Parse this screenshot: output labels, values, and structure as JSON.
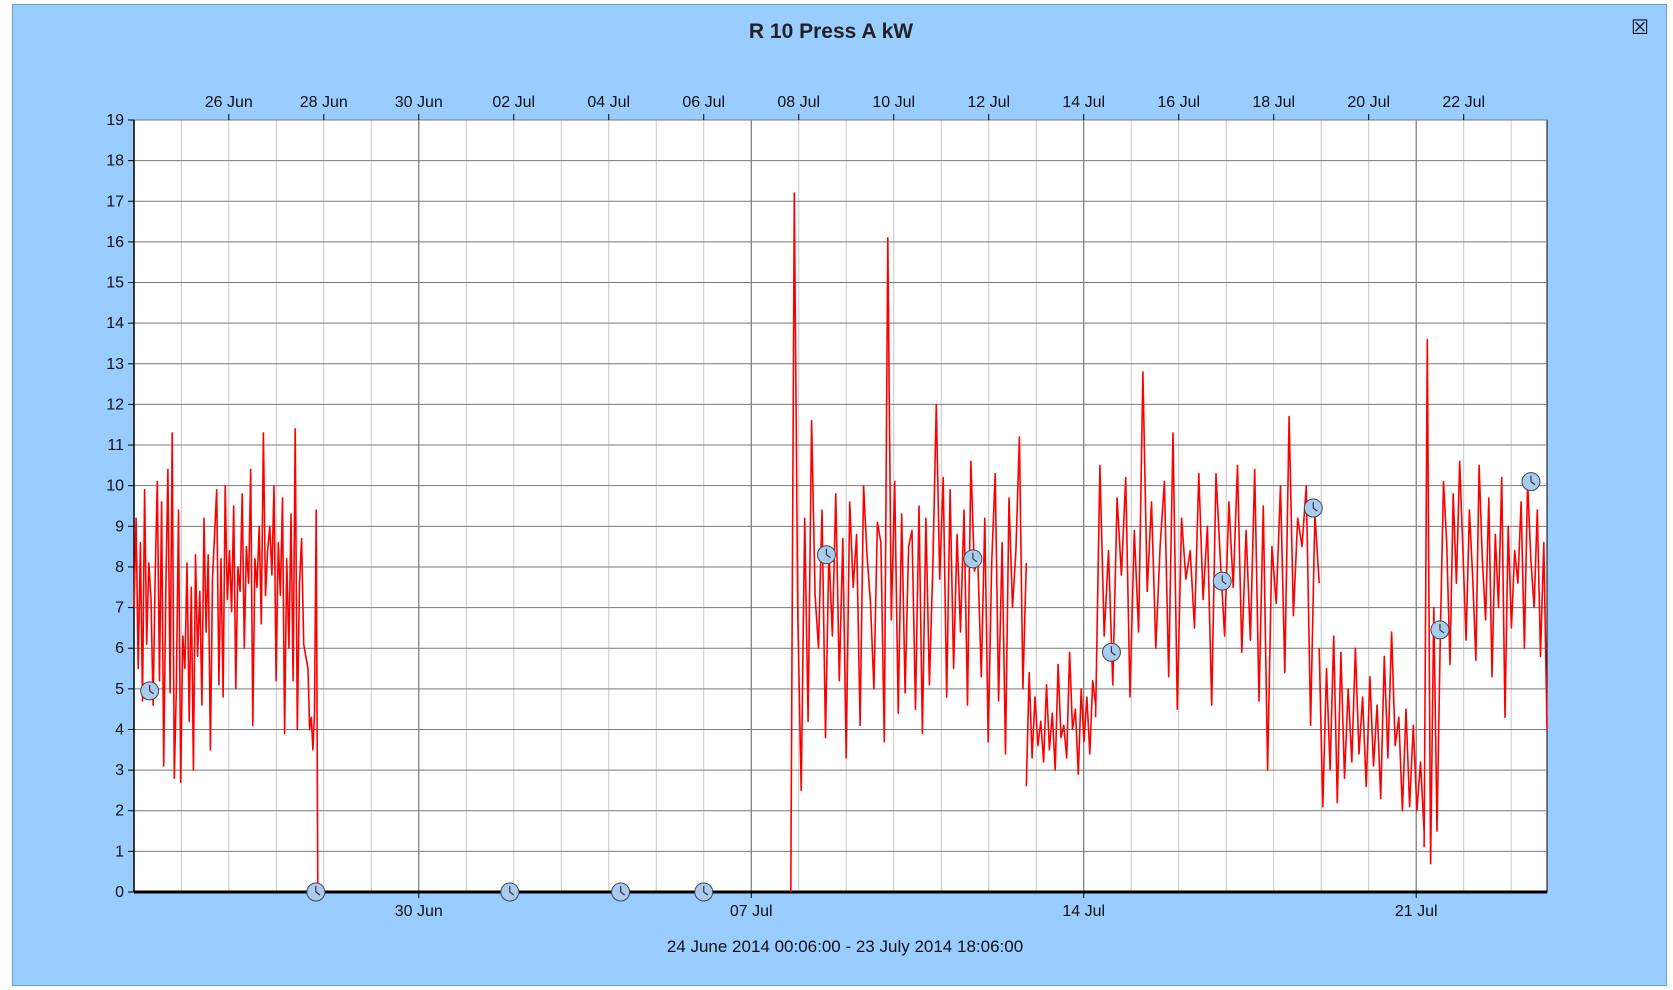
{
  "window": {
    "close_icon": "☒"
  },
  "chart_data": {
    "type": "line",
    "title": "R 10 Press A kW",
    "date_range_label": "24 June 2014 00:06:00  -  23 July 2014 18:06:00",
    "start": "2014-06-24T00:06:00",
    "end": "2014-07-23T18:06:00",
    "ylim": [
      0,
      19
    ],
    "y_ticks": [
      0,
      1,
      2,
      3,
      4,
      5,
      6,
      7,
      8,
      9,
      10,
      11,
      12,
      13,
      14,
      15,
      16,
      17,
      18,
      19
    ],
    "top_axis_ticks": [
      {
        "date": "2014-06-26",
        "label": "26 Jun"
      },
      {
        "date": "2014-06-28",
        "label": "28 Jun"
      },
      {
        "date": "2014-06-30",
        "label": "30 Jun"
      },
      {
        "date": "2014-07-02",
        "label": "02 Jul"
      },
      {
        "date": "2014-07-04",
        "label": "04 Jul"
      },
      {
        "date": "2014-07-06",
        "label": "06 Jul"
      },
      {
        "date": "2014-07-08",
        "label": "08 Jul"
      },
      {
        "date": "2014-07-10",
        "label": "10 Jul"
      },
      {
        "date": "2014-07-12",
        "label": "12 Jul"
      },
      {
        "date": "2014-07-14",
        "label": "14 Jul"
      },
      {
        "date": "2014-07-16",
        "label": "16 Jul"
      },
      {
        "date": "2014-07-18",
        "label": "18 Jul"
      },
      {
        "date": "2014-07-20",
        "label": "20 Jul"
      },
      {
        "date": "2014-07-22",
        "label": "22 Jul"
      }
    ],
    "bottom_axis_ticks": [
      {
        "date": "2014-06-30",
        "label": "30 Jun"
      },
      {
        "date": "2014-07-07",
        "label": "07 Jul"
      },
      {
        "date": "2014-07-14",
        "label": "14 Jul"
      },
      {
        "date": "2014-07-21",
        "label": "21 Jul"
      }
    ],
    "grid": true,
    "series": [
      {
        "color": "#ff0000",
        "segments": [
          {
            "t_start": "2014-06-24T00:06",
            "t_end": "2014-06-27T16:00",
            "values": [
              7,
              9.2,
              5.5,
              8.6,
              4.7,
              9.9,
              6.1,
              8.1,
              7.2,
              4.6,
              7.8,
              10.1,
              5.2,
              9.6,
              3.1,
              7.4,
              10.4,
              4.9,
              11.3,
              2.8,
              5.1,
              9.4,
              2.7,
              6.3,
              5.5,
              8.1,
              4.2,
              7.5,
              3.0,
              8.3,
              5.8,
              7.4,
              4.6,
              9.2,
              6.4,
              8.3,
              3.5,
              7.7,
              8.8,
              9.9,
              5.1,
              8.2,
              4.8,
              10.0,
              7.2,
              8.4,
              6.9,
              9.5,
              5.0,
              8.0,
              7.4,
              9.8,
              6.0,
              8.5,
              7.6,
              10.4,
              4.1,
              8.2,
              7.5,
              9.0,
              6.6,
              11.3,
              7.3,
              8.4,
              9.0,
              7.8,
              10.0,
              5.2,
              8.6,
              7.3,
              9.7,
              3.9,
              8.2,
              6.0,
              9.3,
              5.2,
              11.4,
              4.0,
              7.6,
              8.7,
              6.1,
              5.8,
              5.5
            ]
          },
          {
            "t_start": "2014-06-27T16:00",
            "t_end": "2014-06-27T21:00",
            "values": [
              5.5,
              4.0,
              4.3,
              3.5,
              4.4,
              9.4,
              0.0
            ]
          },
          {
            "t_start": "2014-07-07T20:00",
            "t_end": "2014-07-12T19:00",
            "values": [
              0.0,
              17.2,
              6.8,
              2.5,
              9.2,
              4.2,
              11.6,
              7.3,
              6.0,
              9.4,
              3.8,
              8.4,
              6.3,
              9.8,
              5.2,
              8.7,
              3.3,
              9.6,
              7.5,
              8.8,
              4.1,
              10.0,
              8.3,
              7.1,
              5.0,
              9.1,
              8.6,
              3.7,
              16.1,
              6.7,
              10.1,
              4.4,
              9.3,
              4.9,
              8.5,
              8.9,
              4.5,
              9.5,
              3.9,
              9.2,
              5.1,
              8.0,
              12.0,
              7.7,
              10.2,
              4.8,
              9.9,
              5.5,
              8.8,
              6.4,
              9.4,
              4.6,
              10.6,
              7.9,
              8.2,
              5.3,
              9.2,
              3.7,
              8.1,
              10.3,
              4.7,
              8.6,
              3.4,
              9.7,
              7.0,
              8.4,
              11.2,
              5.0,
              8.1
            ]
          },
          {
            "t_start": "2014-07-12T19:00",
            "t_end": "2014-07-14T06:00",
            "values": [
              2.6,
              5.4,
              3.3,
              4.8,
              3.6,
              4.2,
              3.2,
              5.1,
              3.5,
              4.4,
              3.0,
              5.6,
              3.8,
              4.1,
              3.3,
              5.9,
              4.0,
              4.5,
              2.9,
              5.0,
              3.7,
              4.8,
              3.4,
              5.2,
              4.6
            ]
          },
          {
            "t_start": "2014-07-14T06:00",
            "t_end": "2014-07-18T23:00",
            "values": [
              4.3,
              10.5,
              6.3,
              8.4,
              5.1,
              9.7,
              7.8,
              10.2,
              4.8,
              8.9,
              6.4,
              12.8,
              7.4,
              9.6,
              6.0,
              8.5,
              10.1,
              5.3,
              11.3,
              4.5,
              9.2,
              7.7,
              8.4,
              6.5,
              10.3,
              7.2,
              9.0,
              4.6,
              10.3,
              8.2,
              6.3,
              9.6,
              7.5,
              10.5,
              5.9,
              8.9,
              6.2,
              10.4,
              4.7,
              9.5,
              3.0,
              8.5,
              7.1,
              10.0,
              5.4,
              11.7,
              6.8,
              9.2,
              8.5,
              10.0,
              4.1,
              9.3,
              7.6
            ]
          },
          {
            "t_start": "2014-07-18T23:00",
            "t_end": "2014-07-21T04:00",
            "values": [
              6.0,
              2.1,
              5.5,
              3.0,
              6.3,
              2.2,
              5.9,
              2.8,
              5.0,
              3.2,
              6.0,
              3.4,
              4.8,
              2.6,
              5.3,
              3.1,
              4.6,
              2.3,
              5.8,
              3.3,
              6.4,
              3.6,
              4.3,
              2.0,
              4.5,
              2.1,
              4.1,
              2.0,
              3.2,
              1.5
            ]
          },
          {
            "t_start": "2014-07-21T04:00",
            "t_end": "2014-07-23T18:06",
            "values": [
              1.1,
              13.6,
              0.7,
              7.0,
              1.5,
              6.3,
              10.1,
              8.6,
              5.6,
              9.8,
              7.6,
              10.6,
              8.4,
              6.2,
              9.4,
              7.8,
              5.7,
              10.5,
              8.2,
              6.7,
              9.7,
              5.3,
              8.8,
              7.0,
              10.2,
              4.3,
              9.0,
              6.5,
              8.4,
              7.6,
              9.6,
              6.0,
              10.1,
              8.2,
              7.0,
              9.4,
              5.8,
              8.6,
              4.0
            ]
          }
        ]
      }
    ],
    "annotation_markers": [
      {
        "t": "2014-06-24T08:00",
        "value": 4.95
      },
      {
        "t": "2014-06-27T20:00",
        "value": 0.0
      },
      {
        "t": "2014-07-01T22:00",
        "value": 0.0
      },
      {
        "t": "2014-07-04T06:00",
        "value": 0.0
      },
      {
        "t": "2014-07-06T00:00",
        "value": 0.0
      },
      {
        "t": "2014-07-08T14:00",
        "value": 8.3
      },
      {
        "t": "2014-07-11T16:00",
        "value": 8.2
      },
      {
        "t": "2014-07-14T14:00",
        "value": 5.9
      },
      {
        "t": "2014-07-16T22:00",
        "value": 7.65
      },
      {
        "t": "2014-07-18T20:00",
        "value": 9.45
      },
      {
        "t": "2014-07-21T12:00",
        "value": 6.45
      },
      {
        "t": "2014-07-23T10:00",
        "value": 10.1
      }
    ]
  }
}
